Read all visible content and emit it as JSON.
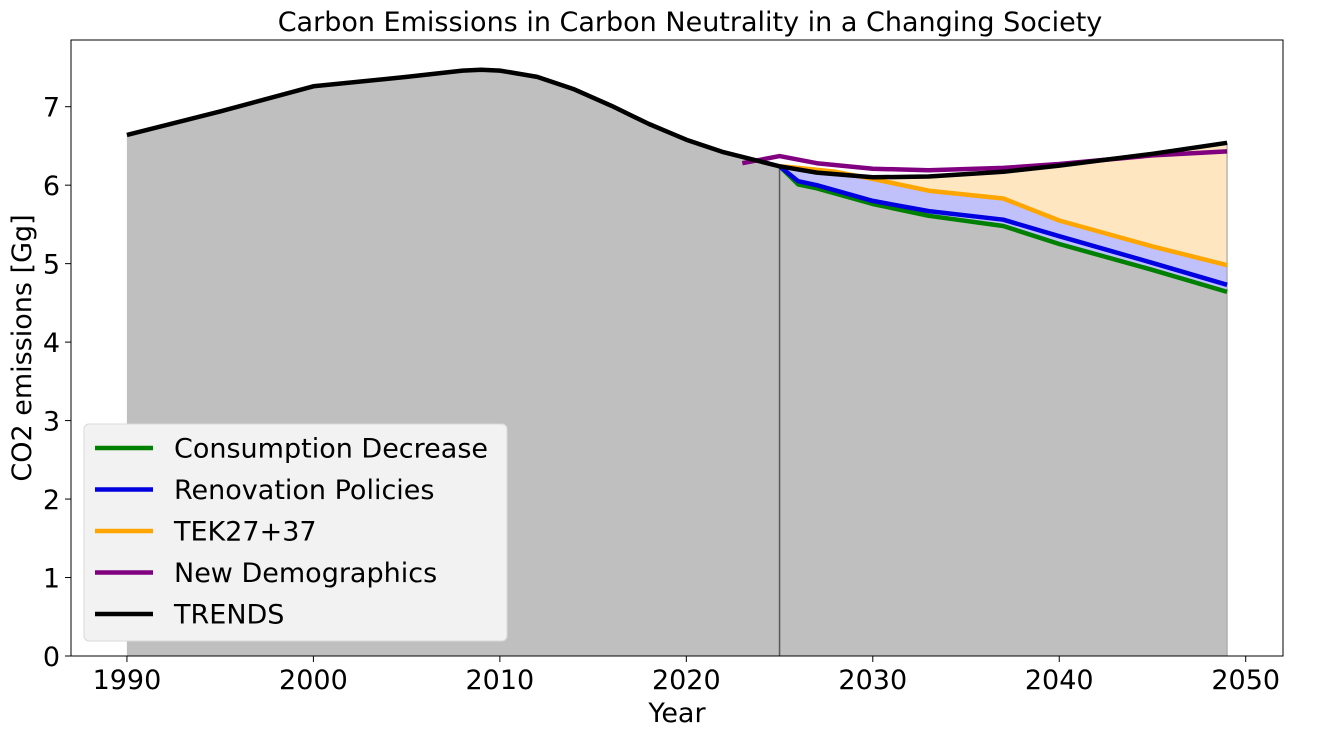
{
  "chart_data": {
    "type": "line",
    "title": "Carbon Emissions in Carbon Neutrality in a Changing Society",
    "xlabel": "Year",
    "ylabel": "CO2 emissions [Gg]",
    "xlim": [
      1987,
      2052
    ],
    "ylim": [
      0,
      7.85
    ],
    "xticks": [
      1990,
      2000,
      2010,
      2020,
      2030,
      2040,
      2050
    ],
    "yticks": [
      0,
      1,
      2,
      3,
      4,
      5,
      6,
      7
    ],
    "grid": false,
    "legend_position": "lower-left",
    "colors": {
      "historical_fill": "#bfbfbf",
      "renovation_fill": "#c0c0fa",
      "tek_fill": "#fee6c0",
      "divider": "#595959",
      "legend_bg": "#f2f2f2",
      "legend_border": "#d9d9d9"
    },
    "historical": {
      "x": [
        1990,
        1995,
        2000,
        2005,
        2008,
        2009,
        2010,
        2012,
        2014,
        2016,
        2018,
        2020,
        2022,
        2024,
        2025
      ],
      "values": [
        6.64,
        6.94,
        7.26,
        7.38,
        7.46,
        7.47,
        7.46,
        7.38,
        7.22,
        7.01,
        6.78,
        6.58,
        6.42,
        6.3,
        6.24
      ]
    },
    "divider_year": 2025,
    "series": [
      {
        "name": "Consumption Decrease",
        "color": "#008000",
        "x": [
          2025,
          2026,
          2027,
          2030,
          2033,
          2037,
          2040,
          2045,
          2049
        ],
        "values": [
          6.24,
          6.01,
          5.96,
          5.76,
          5.61,
          5.48,
          5.25,
          4.92,
          4.64
        ]
      },
      {
        "name": "Renovation Policies",
        "color": "#0000e0",
        "x": [
          2025,
          2026,
          2027,
          2030,
          2033,
          2037,
          2040,
          2045,
          2049
        ],
        "values": [
          6.24,
          6.05,
          6.0,
          5.8,
          5.67,
          5.56,
          5.35,
          5.01,
          4.73
        ]
      },
      {
        "name": "TEK27+37",
        "color": "#ffa500",
        "x": [
          2025,
          2026,
          2028,
          2030,
          2033,
          2037,
          2040,
          2045,
          2049
        ],
        "values": [
          6.24,
          6.22,
          6.17,
          6.08,
          5.93,
          5.83,
          5.55,
          5.22,
          4.98
        ]
      },
      {
        "name": "New Demographics",
        "color": "#800080",
        "x": [
          2023,
          2025,
          2027,
          2030,
          2033,
          2037,
          2040,
          2045,
          2049
        ],
        "values": [
          6.28,
          6.37,
          6.28,
          6.21,
          6.19,
          6.22,
          6.27,
          6.38,
          6.43
        ]
      },
      {
        "name": "TRENDS",
        "color": "#000000",
        "x": [
          1990,
          1995,
          2000,
          2005,
          2008,
          2009,
          2010,
          2012,
          2014,
          2016,
          2018,
          2020,
          2022,
          2024,
          2025,
          2027,
          2030,
          2033,
          2037,
          2040,
          2045,
          2049
        ],
        "values": [
          6.64,
          6.94,
          7.26,
          7.38,
          7.46,
          7.47,
          7.46,
          7.38,
          7.22,
          7.01,
          6.78,
          6.58,
          6.42,
          6.3,
          6.24,
          6.16,
          6.1,
          6.11,
          6.17,
          6.25,
          6.4,
          6.54
        ]
      }
    ]
  }
}
